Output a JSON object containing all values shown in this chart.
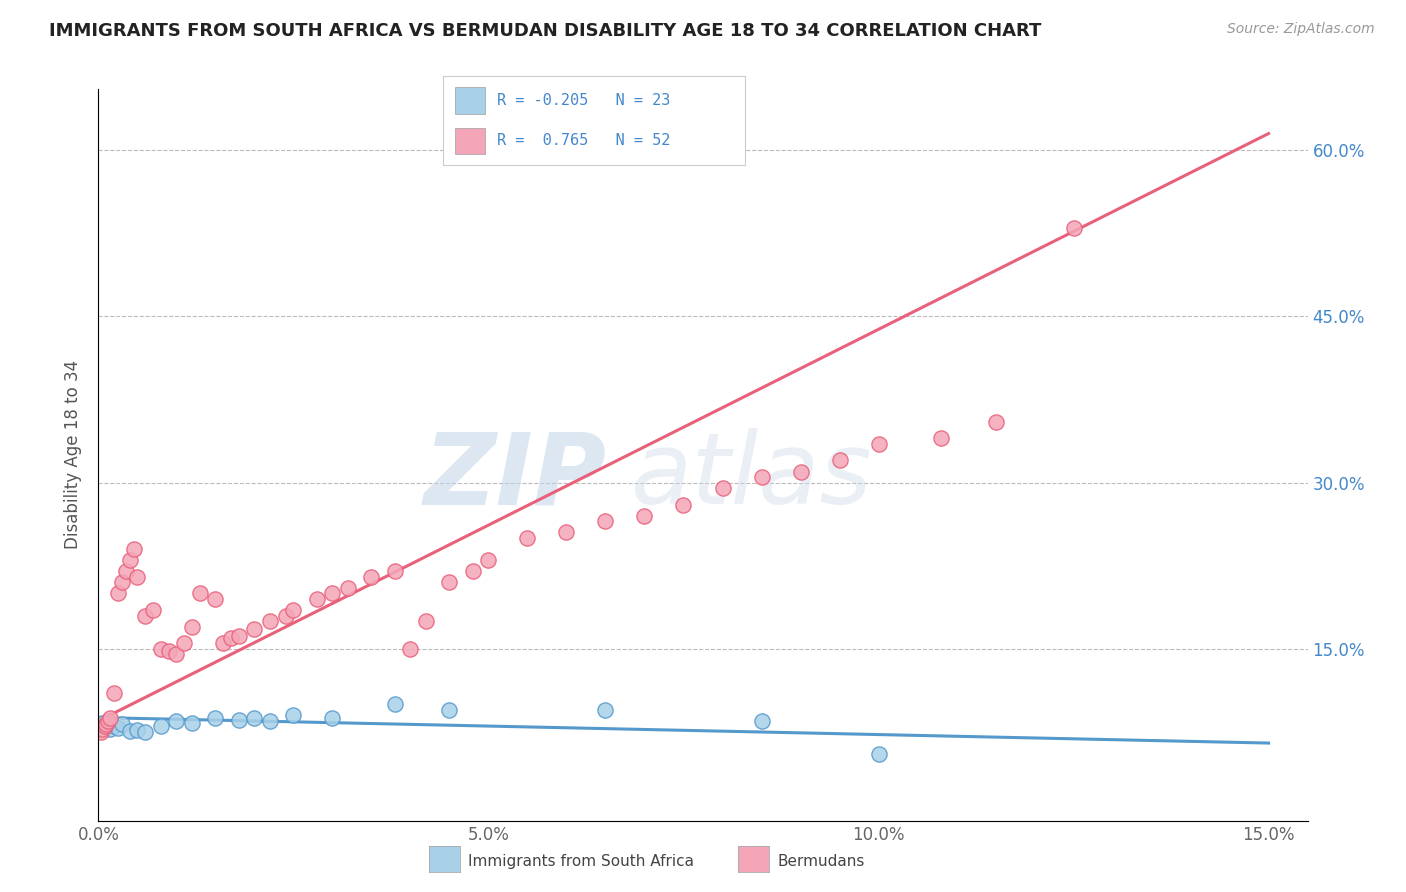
{
  "title": "IMMIGRANTS FROM SOUTH AFRICA VS BERMUDAN DISABILITY AGE 18 TO 34 CORRELATION CHART",
  "source": "Source: ZipAtlas.com",
  "ylabel": "Disability Age 18 to 34",
  "legend_label_blue": "Immigrants from South Africa",
  "legend_label_pink": "Bermudans",
  "R_blue": -0.205,
  "N_blue": 23,
  "R_pink": 0.765,
  "N_pink": 52,
  "blue_color": "#A8D0E8",
  "pink_color": "#F4A6B8",
  "blue_line_color": "#5599CC",
  "pink_line_color": "#E8607A",
  "xlim": [
    0.0,
    0.155
  ],
  "ylim": [
    -0.005,
    0.655
  ],
  "xticks": [
    0.0,
    0.05,
    0.1,
    0.15
  ],
  "yticks": [
    0.15,
    0.3,
    0.45,
    0.6
  ],
  "xtick_labels": [
    "0.0%",
    "5.0%",
    "10.0%",
    "15.0%"
  ],
  "ytick_labels": [
    "15.0%",
    "30.0%",
    "45.0%",
    "60.0%"
  ],
  "watermark_zip": "ZIP",
  "watermark_atlas": "atlas",
  "watermark_color": "#C8D8E8",
  "blue_scatter_x": [
    0.0005,
    0.001,
    0.0015,
    0.002,
    0.0025,
    0.003,
    0.004,
    0.005,
    0.006,
    0.008,
    0.01,
    0.012,
    0.015,
    0.018,
    0.02,
    0.022,
    0.025,
    0.03,
    0.038,
    0.045,
    0.065,
    0.085,
    0.1
  ],
  "blue_scatter_y": [
    0.083,
    0.081,
    0.078,
    0.08,
    0.079,
    0.082,
    0.076,
    0.077,
    0.075,
    0.08,
    0.085,
    0.083,
    0.088,
    0.086,
    0.088,
    0.085,
    0.09,
    0.088,
    0.1,
    0.095,
    0.095,
    0.085,
    0.055
  ],
  "pink_scatter_x": [
    0.0003,
    0.0005,
    0.0008,
    0.001,
    0.0012,
    0.0015,
    0.002,
    0.0025,
    0.003,
    0.0035,
    0.004,
    0.0045,
    0.005,
    0.006,
    0.007,
    0.008,
    0.009,
    0.01,
    0.011,
    0.012,
    0.013,
    0.015,
    0.016,
    0.017,
    0.018,
    0.02,
    0.022,
    0.024,
    0.025,
    0.028,
    0.03,
    0.032,
    0.035,
    0.038,
    0.04,
    0.042,
    0.045,
    0.048,
    0.05,
    0.055,
    0.06,
    0.065,
    0.07,
    0.075,
    0.08,
    0.085,
    0.09,
    0.095,
    0.1,
    0.108,
    0.115,
    0.125
  ],
  "pink_scatter_y": [
    0.075,
    0.078,
    0.08,
    0.082,
    0.085,
    0.088,
    0.11,
    0.2,
    0.21,
    0.22,
    0.23,
    0.24,
    0.215,
    0.18,
    0.185,
    0.15,
    0.148,
    0.145,
    0.155,
    0.17,
    0.2,
    0.195,
    0.155,
    0.16,
    0.162,
    0.168,
    0.175,
    0.18,
    0.185,
    0.195,
    0.2,
    0.205,
    0.215,
    0.22,
    0.15,
    0.175,
    0.21,
    0.22,
    0.23,
    0.25,
    0.255,
    0.265,
    0.27,
    0.28,
    0.295,
    0.305,
    0.31,
    0.32,
    0.335,
    0.34,
    0.355,
    0.53
  ]
}
